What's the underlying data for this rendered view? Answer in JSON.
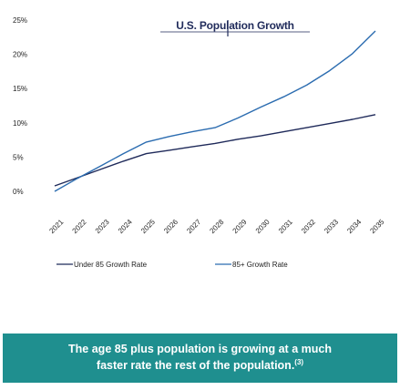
{
  "chart_data": {
    "type": "line",
    "title": "U.S. Population Growth",
    "x_tick_labels": [
      "2021",
      "2022",
      "2023",
      "2024",
      "2025",
      "2026",
      "2027",
      "2028",
      "2029",
      "2030",
      "2031",
      "2032",
      "2033",
      "2034",
      "2035"
    ],
    "y_tick_labels": [
      "0%",
      "5%",
      "10%",
      "15%",
      "20%",
      "25%"
    ],
    "ylim": [
      0,
      25
    ],
    "grid": false,
    "legend_position": "bottom",
    "series": [
      {
        "name": "Under 85 Growth Rate",
        "color": "#1f2a5a",
        "values": [
          0.8,
          2.0,
          3.2,
          4.4,
          5.5,
          6.0,
          6.5,
          7.0,
          7.6,
          8.1,
          8.7,
          9.3,
          9.9,
          10.5,
          11.2
        ]
      },
      {
        "name": "85+ Growth Rate",
        "color": "#2b6cb0",
        "values": [
          0.0,
          1.9,
          3.7,
          5.5,
          7.2,
          8.0,
          8.7,
          9.3,
          10.7,
          12.3,
          13.8,
          15.5,
          17.6,
          20.1,
          23.4
        ]
      }
    ]
  },
  "banner": {
    "line1": "The age 85 plus population is growing at a much",
    "line2": "faster rate the rest of the population.",
    "footnote": "(3)"
  }
}
